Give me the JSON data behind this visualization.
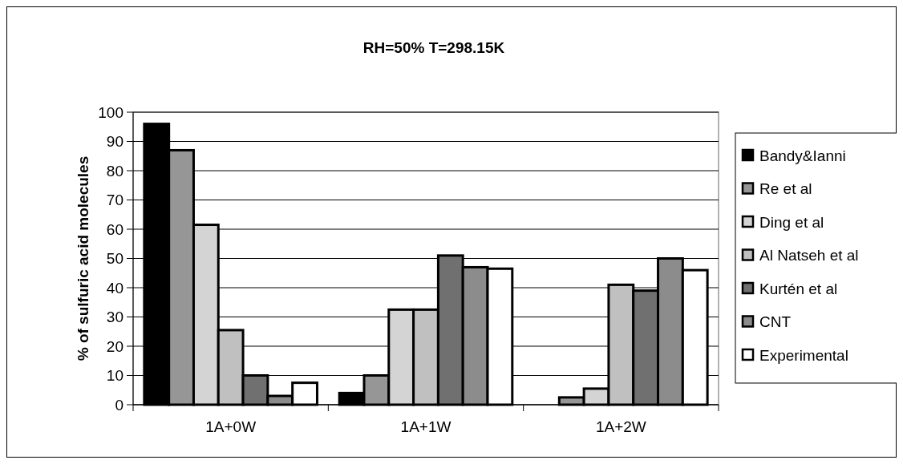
{
  "chart_data": {
    "type": "bar",
    "title": "RH=50% T=298.15K",
    "ylabel": "% of sulfuric acid molecules",
    "categories": [
      "1A+0W",
      "1A+1W",
      "1A+2W"
    ],
    "series": [
      {
        "name": "Bandy&Ianni",
        "color": "#000000",
        "values": [
          96,
          4,
          null
        ]
      },
      {
        "name": "Re et al",
        "color": "#969696",
        "values": [
          87,
          10,
          2.5
        ]
      },
      {
        "name": "Ding et al",
        "color": "#d4d4d4",
        "values": [
          61.5,
          32.5,
          5.5
        ]
      },
      {
        "name": "Al Natseh et al",
        "color": "#c0c0c0",
        "values": [
          25.5,
          32.5,
          41
        ]
      },
      {
        "name": "Kurtén et al",
        "color": "#707070",
        "values": [
          10,
          51,
          39
        ]
      },
      {
        "name": "CNT",
        "color": "#8c8c8c",
        "values": [
          3,
          47,
          50
        ]
      },
      {
        "name": "Experimental",
        "color": "#ffffff",
        "values": [
          7.5,
          46.5,
          46
        ]
      }
    ],
    "ylim": [
      0,
      100
    ],
    "yticks": [
      0,
      10,
      20,
      30,
      40,
      50,
      60,
      70,
      80,
      90,
      100
    ],
    "grid": "y",
    "legend": "right"
  }
}
